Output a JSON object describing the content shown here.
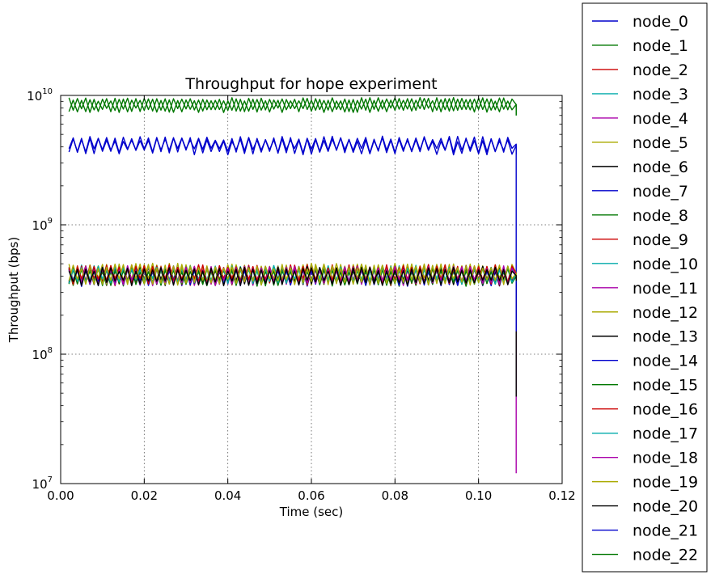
{
  "chart_data": {
    "type": "line",
    "title": "Throughput for hope experiment",
    "xlabel": "Time (sec)",
    "ylabel": "Throughput (bps)",
    "xlim": [
      0.0,
      0.12
    ],
    "ylim": [
      10000000,
      10000000000
    ],
    "y_scale": "log",
    "grid": true,
    "legend_position": "outside-right",
    "x_ticks": [
      "0.00",
      "0.02",
      "0.04",
      "0.06",
      "0.08",
      "0.10",
      "0.12"
    ],
    "y_ticks": [
      {
        "base": "10",
        "exp": "7"
      },
      {
        "base": "10",
        "exp": "8"
      },
      {
        "base": "10",
        "exp": "9"
      },
      {
        "base": "10",
        "exp": "10"
      }
    ],
    "x_start": 0.002,
    "x_step": 0.001,
    "x_drop": 0.109,
    "series": [
      {
        "name": "node_0",
        "color": "#0000cc",
        "level": 400000000,
        "amp": 0.15,
        "final": 300000000
      },
      {
        "name": "node_1",
        "color": "#007700",
        "level": 8500000000,
        "amp": 0.12,
        "final": 7000000000
      },
      {
        "name": "node_2",
        "color": "#cc0000",
        "level": 410000000,
        "amp": 0.16,
        "final": 350000000
      },
      {
        "name": "node_3",
        "color": "#00aaaa",
        "level": 420000000,
        "amp": 0.15,
        "final": 380000000
      },
      {
        "name": "node_4",
        "color": "#aa00aa",
        "level": 410000000,
        "amp": 0.15,
        "final": 12000000
      },
      {
        "name": "node_5",
        "color": "#aaaa00",
        "level": 420000000,
        "amp": 0.17,
        "final": 400000000
      },
      {
        "name": "node_6",
        "color": "#000000",
        "level": 405000000,
        "amp": 0.15,
        "final": 47000000
      },
      {
        "name": "node_7",
        "color": "#0000cc",
        "level": 4200000000,
        "amp": 0.14,
        "final": 150000000
      },
      {
        "name": "node_8",
        "color": "#007700",
        "level": 400000000,
        "amp": 0.15,
        "final": 360000000
      },
      {
        "name": "node_9",
        "color": "#cc0000",
        "level": 420000000,
        "amp": 0.16,
        "final": 370000000
      },
      {
        "name": "node_10",
        "color": "#00aaaa",
        "level": 415000000,
        "amp": 0.15,
        "final": 390000000
      },
      {
        "name": "node_11",
        "color": "#aa00aa",
        "level": 410000000,
        "amp": 0.16,
        "final": 380000000
      },
      {
        "name": "node_12",
        "color": "#aaaa00",
        "level": 425000000,
        "amp": 0.17,
        "final": 400000000
      },
      {
        "name": "node_13",
        "color": "#000000",
        "level": 410000000,
        "amp": 0.15,
        "final": 380000000
      },
      {
        "name": "node_14",
        "color": "#0000cc",
        "level": 405000000,
        "amp": 0.15,
        "final": 360000000
      },
      {
        "name": "node_15",
        "color": "#007700",
        "level": 400000000,
        "amp": 0.14,
        "final": 370000000
      },
      {
        "name": "node_16",
        "color": "#cc0000",
        "level": 420000000,
        "amp": 0.16,
        "final": 380000000
      },
      {
        "name": "node_17",
        "color": "#00aaaa",
        "level": 415000000,
        "amp": 0.15,
        "final": 390000000
      },
      {
        "name": "node_18",
        "color": "#aa00aa",
        "level": 410000000,
        "amp": 0.16,
        "final": 380000000
      },
      {
        "name": "node_19",
        "color": "#aaaa00",
        "level": 420000000,
        "amp": 0.17,
        "final": 400000000
      },
      {
        "name": "node_20",
        "color": "#000000",
        "level": 405000000,
        "amp": 0.15,
        "final": 370000000
      },
      {
        "name": "node_21",
        "color": "#0000cc",
        "level": 4100000000,
        "amp": 0.14,
        "final": 3500000000
      },
      {
        "name": "node_22",
        "color": "#007700",
        "level": 8500000000,
        "amp": 0.12,
        "final": 7000000000
      }
    ]
  }
}
